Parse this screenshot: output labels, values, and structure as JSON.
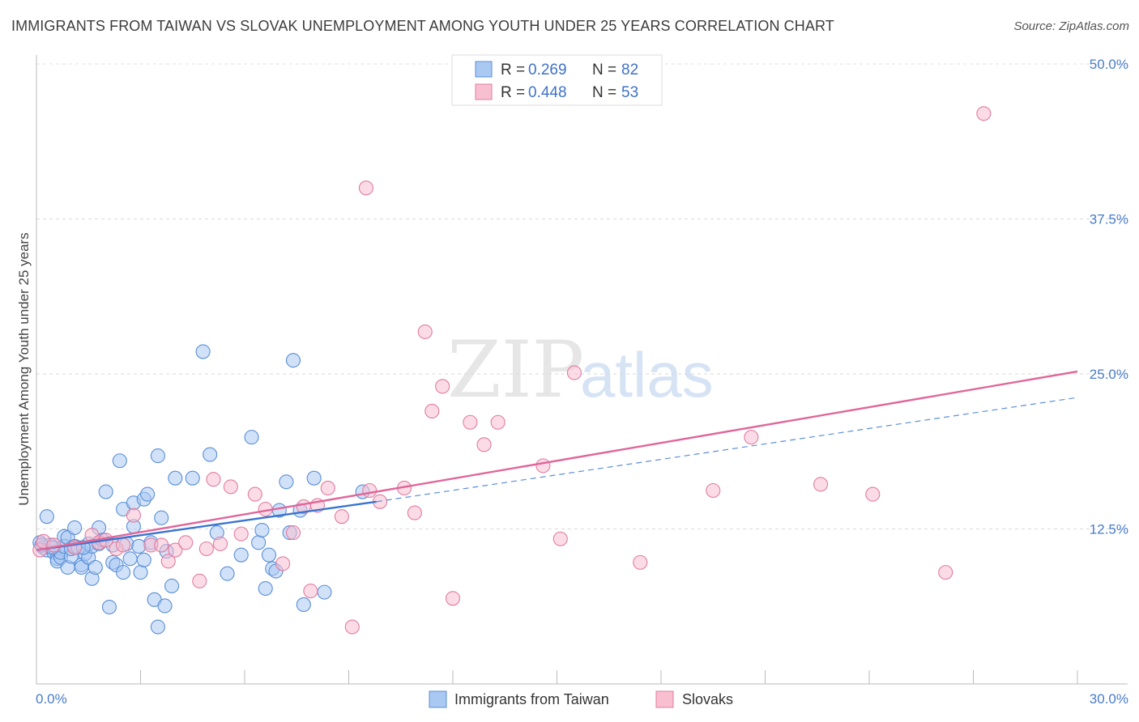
{
  "header": {
    "title": "IMMIGRANTS FROM TAIWAN VS SLOVAK UNEMPLOYMENT AMONG YOUTH UNDER 25 YEARS CORRELATION CHART",
    "source": "Source: ZipAtlas.com"
  },
  "watermark": {
    "zip": "ZIP",
    "atlas": "atlas"
  },
  "legend": {
    "r_label": "R =",
    "n_label": "N =",
    "items": [
      {
        "name": "Immigrants from Taiwan",
        "r": "0.269",
        "n": "82",
        "color": "#a9c8f2",
        "stroke": "#5b8fd6"
      },
      {
        "name": "Slovaks",
        "r": "0.448",
        "n": "53",
        "color": "#f8bfd1",
        "stroke": "#e17ca0"
      }
    ]
  },
  "chart_data": {
    "type": "scatter",
    "title": "IMMIGRANTS FROM TAIWAN VS SLOVAK UNEMPLOYMENT AMONG YOUTH UNDER 25 YEARS CORRELATION CHART",
    "xlabel": "",
    "ylabel": "Unemployment Among Youth under 25 years",
    "xlim": [
      0,
      30
    ],
    "ylim": [
      0,
      50
    ],
    "x_tick_labels": [
      "0.0%",
      "30.0%"
    ],
    "y_ticks": [
      12.5,
      25.0,
      37.5,
      50.0
    ],
    "y_tick_labels": [
      "12.5%",
      "25.0%",
      "37.5%",
      "50.0%"
    ],
    "series": [
      {
        "name": "Immigrants from Taiwan",
        "color": "#a9c8f2",
        "stroke": "#5b8fd6",
        "trend": {
          "x": [
            0.0,
            9.8
          ],
          "y": [
            10.8,
            14.7
          ],
          "dash_to": [
            30.0,
            23.1
          ]
        },
        "points": [
          [
            0.1,
            11.4
          ],
          [
            0.2,
            11.0
          ],
          [
            0.3,
            10.8
          ],
          [
            0.3,
            13.5
          ],
          [
            0.4,
            11.2
          ],
          [
            0.5,
            10.6
          ],
          [
            0.5,
            11.0
          ],
          [
            0.6,
            10.1
          ],
          [
            0.6,
            9.9
          ],
          [
            0.7,
            10.2
          ],
          [
            0.7,
            10.6
          ],
          [
            0.8,
            11.9
          ],
          [
            0.8,
            11.1
          ],
          [
            0.9,
            9.4
          ],
          [
            0.9,
            11.8
          ],
          [
            1.0,
            10.3
          ],
          [
            1.0,
            10.9
          ],
          [
            1.1,
            11.1
          ],
          [
            1.1,
            12.6
          ],
          [
            1.2,
            11.0
          ],
          [
            1.3,
            9.6
          ],
          [
            1.3,
            9.4
          ],
          [
            1.4,
            10.5
          ],
          [
            1.5,
            11.3
          ],
          [
            1.5,
            10.2
          ],
          [
            1.6,
            11.1
          ],
          [
            1.6,
            8.5
          ],
          [
            1.7,
            9.4
          ],
          [
            1.8,
            12.6
          ],
          [
            1.8,
            11.3
          ],
          [
            1.9,
            11.6
          ],
          [
            2.0,
            15.5
          ],
          [
            2.1,
            6.2
          ],
          [
            2.2,
            11.2
          ],
          [
            2.2,
            9.8
          ],
          [
            2.3,
            9.6
          ],
          [
            2.4,
            18.0
          ],
          [
            2.5,
            14.1
          ],
          [
            2.5,
            9.0
          ],
          [
            2.6,
            11.3
          ],
          [
            2.7,
            10.1
          ],
          [
            2.8,
            12.7
          ],
          [
            2.8,
            14.6
          ],
          [
            3.0,
            9.0
          ],
          [
            3.1,
            10.0
          ],
          [
            3.1,
            14.9
          ],
          [
            3.2,
            15.3
          ],
          [
            3.3,
            11.4
          ],
          [
            3.4,
            6.8
          ],
          [
            3.5,
            4.6
          ],
          [
            3.5,
            18.4
          ],
          [
            3.6,
            13.4
          ],
          [
            3.7,
            6.3
          ],
          [
            3.9,
            7.9
          ],
          [
            4.0,
            16.6
          ],
          [
            4.5,
            16.6
          ],
          [
            4.8,
            26.8
          ],
          [
            5.0,
            18.5
          ],
          [
            5.2,
            12.2
          ],
          [
            5.5,
            8.9
          ],
          [
            5.9,
            10.4
          ],
          [
            6.2,
            19.9
          ],
          [
            6.4,
            11.4
          ],
          [
            6.5,
            12.4
          ],
          [
            6.6,
            7.7
          ],
          [
            6.7,
            10.4
          ],
          [
            6.8,
            9.3
          ],
          [
            6.9,
            9.1
          ],
          [
            7.0,
            14.0
          ],
          [
            7.2,
            16.3
          ],
          [
            7.3,
            12.2
          ],
          [
            7.4,
            26.1
          ],
          [
            7.6,
            14.0
          ],
          [
            7.7,
            6.4
          ],
          [
            8.0,
            16.6
          ],
          [
            8.3,
            7.4
          ],
          [
            9.4,
            15.5
          ],
          [
            0.15,
            11.2
          ],
          [
            0.45,
            11.0
          ],
          [
            1.35,
            11.0
          ],
          [
            2.95,
            11.1
          ],
          [
            3.75,
            10.7
          ]
        ]
      },
      {
        "name": "Slovaks",
        "color": "#f8bfd1",
        "stroke": "#e17ca0",
        "trend": {
          "x": [
            0.0,
            30.0
          ],
          "y": [
            10.8,
            25.2
          ]
        },
        "points": [
          [
            0.1,
            10.8
          ],
          [
            0.2,
            11.5
          ],
          [
            0.5,
            11.2
          ],
          [
            1.1,
            11.0
          ],
          [
            1.6,
            12.0
          ],
          [
            1.8,
            11.4
          ],
          [
            2.0,
            11.6
          ],
          [
            2.3,
            10.9
          ],
          [
            2.5,
            11.2
          ],
          [
            2.8,
            13.6
          ],
          [
            3.3,
            11.2
          ],
          [
            3.6,
            11.2
          ],
          [
            3.8,
            9.9
          ],
          [
            4.0,
            10.8
          ],
          [
            4.3,
            11.4
          ],
          [
            4.7,
            8.3
          ],
          [
            4.9,
            10.9
          ],
          [
            5.1,
            16.5
          ],
          [
            5.6,
            15.9
          ],
          [
            5.9,
            12.1
          ],
          [
            6.3,
            15.3
          ],
          [
            6.6,
            14.1
          ],
          [
            7.1,
            9.7
          ],
          [
            7.4,
            12.2
          ],
          [
            7.7,
            14.3
          ],
          [
            7.9,
            7.5
          ],
          [
            8.1,
            14.4
          ],
          [
            8.4,
            15.8
          ],
          [
            8.8,
            13.5
          ],
          [
            9.1,
            4.6
          ],
          [
            9.5,
            40.0
          ],
          [
            9.6,
            15.6
          ],
          [
            9.9,
            14.7
          ],
          [
            10.6,
            15.8
          ],
          [
            10.9,
            13.8
          ],
          [
            11.2,
            28.4
          ],
          [
            11.4,
            22.0
          ],
          [
            11.7,
            24.0
          ],
          [
            12.0,
            6.9
          ],
          [
            12.5,
            21.1
          ],
          [
            12.9,
            19.3
          ],
          [
            13.3,
            21.1
          ],
          [
            14.6,
            17.6
          ],
          [
            15.1,
            11.7
          ],
          [
            15.5,
            25.1
          ],
          [
            17.4,
            9.8
          ],
          [
            19.5,
            15.6
          ],
          [
            20.6,
            19.9
          ],
          [
            22.6,
            16.1
          ],
          [
            24.1,
            15.3
          ],
          [
            26.2,
            9.0
          ],
          [
            27.3,
            46.0
          ],
          [
            5.3,
            11.3
          ]
        ]
      }
    ]
  }
}
